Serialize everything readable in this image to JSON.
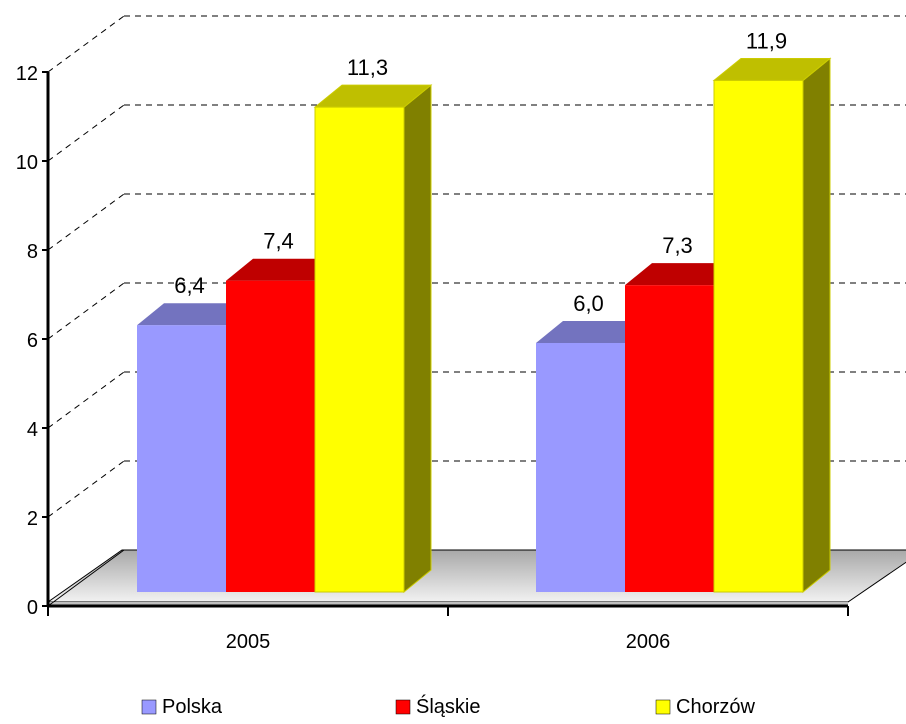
{
  "chart_data": {
    "type": "bar",
    "three_d": true,
    "title": "",
    "xlabel": "",
    "ylabel": "",
    "categories": [
      "2005",
      "2006"
    ],
    "series": [
      {
        "name": "Polska",
        "values": [
          6.4,
          6.0
        ],
        "labels": [
          "6,4",
          "6,0"
        ],
        "color": "#9999ff"
      },
      {
        "name": "Śląskie",
        "values": [
          7.4,
          7.3
        ],
        "labels": [
          "7,4",
          "7,3"
        ],
        "color": "#ff0000"
      },
      {
        "name": "Chorzów",
        "values": [
          11.3,
          11.9
        ],
        "labels": [
          "11,3",
          "11,9"
        ],
        "color": "#ffff00"
      }
    ],
    "ylim": [
      0,
      12
    ],
    "yticks": [
      0,
      2,
      4,
      6,
      8,
      10,
      12
    ],
    "ytick_labels": [
      "0",
      "2",
      "4",
      "6",
      "8",
      "10",
      "12"
    ],
    "grid": "dashed horizontal",
    "legend_position": "bottom"
  }
}
